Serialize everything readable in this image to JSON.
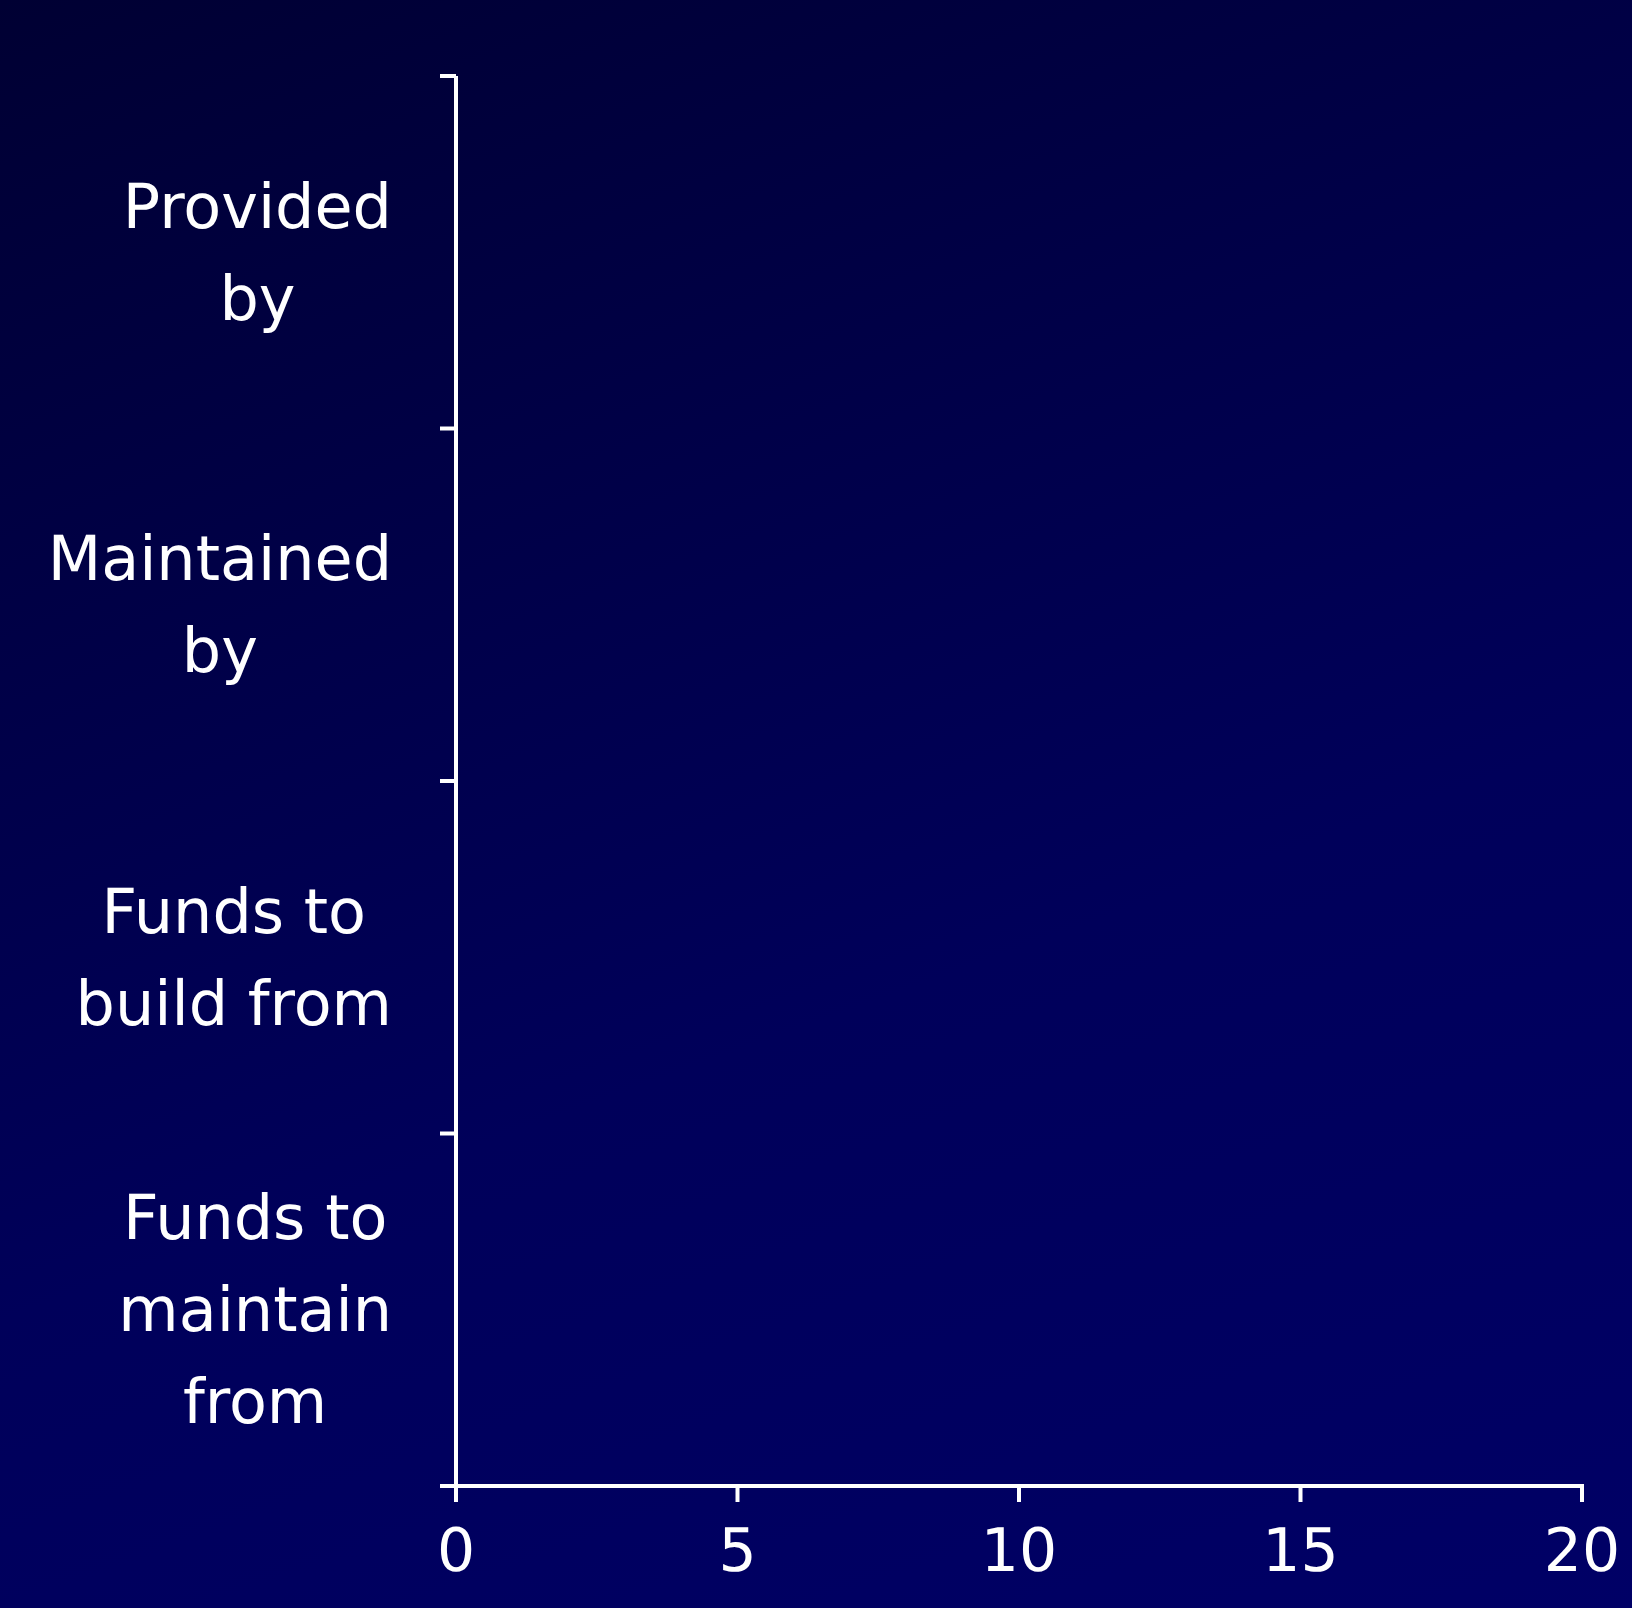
{
  "chart_data": {
    "type": "bar",
    "orientation": "horizontal",
    "categories": [
      "Provided by",
      "Maintained by",
      "Funds to build from",
      "Funds to maintain from"
    ],
    "values": [
      null,
      null,
      null,
      null
    ],
    "xlim": [
      0,
      20
    ],
    "xticks": [
      0,
      5,
      10,
      15,
      20
    ],
    "grid": false
  }
}
